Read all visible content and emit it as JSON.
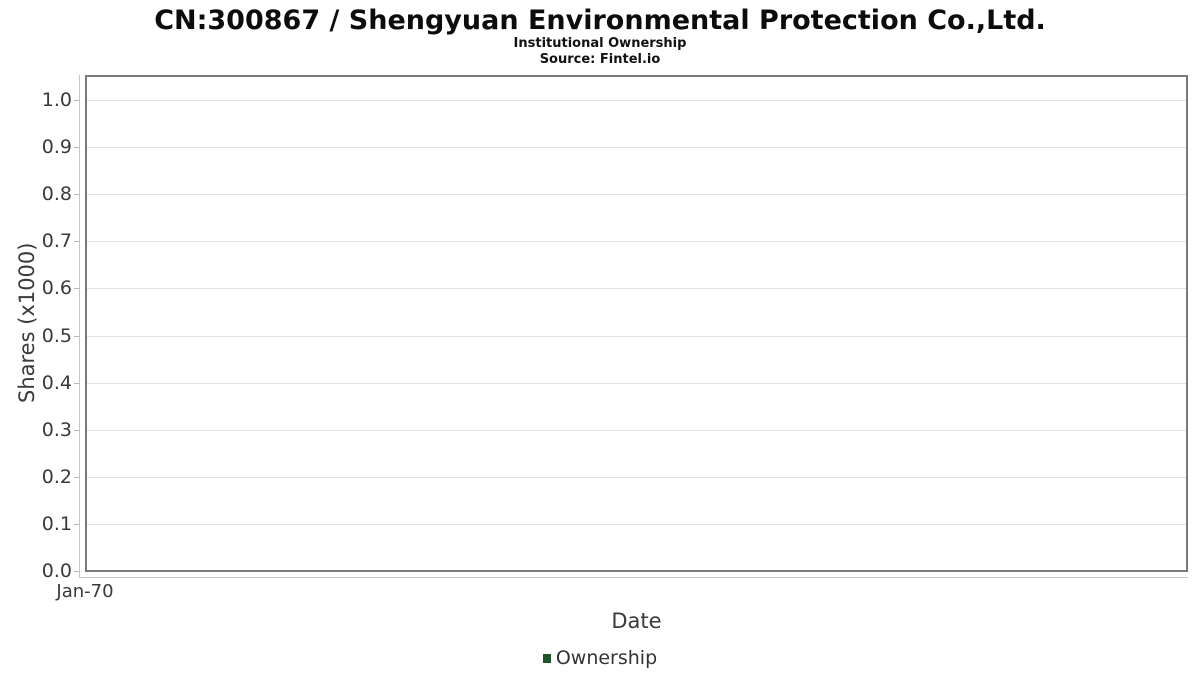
{
  "header": {
    "title": "CN:300867 / Shengyuan Environmental Protection Co.,Ltd.",
    "subtitle": "Institutional Ownership",
    "source": "Source: Fintel.io"
  },
  "chart_data": {
    "type": "line",
    "title": "CN:300867 / Shengyuan Environmental Protection Co.,Ltd. Institutional Ownership",
    "xlabel": "Date",
    "ylabel": "Shares (x1000)",
    "x_tick_labels": [
      "Jan-70"
    ],
    "y_tick_labels": [
      "0.0",
      "0.1",
      "0.2",
      "0.3",
      "0.4",
      "0.5",
      "0.6",
      "0.7",
      "0.8",
      "0.9",
      "1.0"
    ],
    "ylim": [
      0.0,
      1.05
    ],
    "grid": "horizontal",
    "legend_position": "bottom",
    "series": [
      {
        "name": "Ownership",
        "color": "#1f5328",
        "x": [],
        "values": []
      }
    ]
  },
  "legend": {
    "items": [
      {
        "label": "Ownership",
        "color": "#1f5328"
      }
    ]
  },
  "colors": {
    "plot_border": "#7a7a7a",
    "gridline": "#e3e3e3",
    "axis_line": "#c5c5c5",
    "tick_text": "#3a3a3a",
    "title_text": "#0c0c0c"
  }
}
